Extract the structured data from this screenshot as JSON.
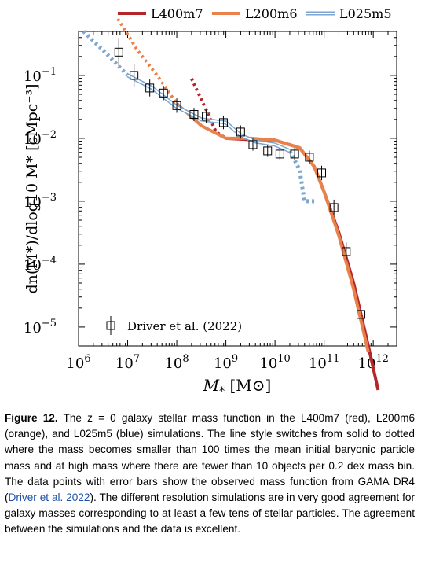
{
  "chart_data": {
    "type": "line",
    "xlabel_symbol": "M",
    "xlabel_sub": "*",
    "xlabel_unit": "[M⊙]",
    "ylabel": "dn(M*)/dlog10 M* [cMpc⁻³]",
    "xscale": "log",
    "yscale": "log",
    "xlim": [
      1000000.0,
      3000000000000.0
    ],
    "ylim": [
      5e-06,
      0.5
    ],
    "x_ticks": [
      6,
      7,
      8,
      9,
      10,
      11,
      12
    ],
    "y_ticks": [
      -5,
      -4,
      -3,
      -2,
      -1
    ],
    "legend_position": "top",
    "series": [
      {
        "name": "L400m7",
        "color": "#b5262a",
        "solid": [
          [
            9.0,
            -2.0
          ],
          [
            9.5,
            -2.02
          ],
          [
            10.0,
            -2.03
          ],
          [
            10.5,
            -2.15
          ],
          [
            10.8,
            -2.45
          ],
          [
            11.0,
            -2.85
          ],
          [
            11.3,
            -3.5
          ],
          [
            11.6,
            -4.3
          ],
          [
            11.9,
            -5.3
          ],
          [
            12.1,
            -6.0
          ]
        ],
        "dotted": [
          [
            8.3,
            -1.05
          ],
          [
            8.6,
            -1.55
          ],
          [
            8.8,
            -1.9
          ],
          [
            9.0,
            -2.0
          ]
        ]
      },
      {
        "name": "L200m6",
        "color": "#e8824a",
        "solid": [
          [
            8.0,
            -1.45
          ],
          [
            8.5,
            -1.8
          ],
          [
            9.0,
            -2.0
          ],
          [
            9.5,
            -2.0
          ],
          [
            10.0,
            -2.03
          ],
          [
            10.5,
            -2.15
          ],
          [
            10.8,
            -2.45
          ],
          [
            11.0,
            -2.85
          ],
          [
            11.3,
            -3.55
          ],
          [
            11.6,
            -4.4
          ],
          [
            11.9,
            -5.4
          ]
        ],
        "dotted": [
          [
            6.8,
            -0.1
          ],
          [
            7.2,
            -0.6
          ],
          [
            7.6,
            -1.0
          ],
          [
            8.0,
            -1.45
          ]
        ]
      },
      {
        "name": "L025m5",
        "color": "#7ea6cf",
        "solid": [
          [
            7.0,
            -1.0
          ],
          [
            7.5,
            -1.2
          ],
          [
            8.0,
            -1.5
          ],
          [
            8.5,
            -1.7
          ],
          [
            9.0,
            -1.75
          ],
          [
            9.3,
            -1.95
          ],
          [
            9.6,
            -2.05
          ],
          [
            10.0,
            -2.1
          ],
          [
            10.3,
            -2.2
          ]
        ],
        "dotted": [
          [
            6.1,
            -0.3
          ],
          [
            6.5,
            -0.6
          ],
          [
            7.0,
            -1.0
          ]
        ],
        "dotted_high": [
          [
            10.3,
            -2.2
          ],
          [
            10.5,
            -2.5
          ],
          [
            10.6,
            -3.0
          ],
          [
            10.8,
            -3.0
          ]
        ]
      }
    ],
    "observations": {
      "name": "Driver et al. (2022)",
      "points": [
        [
          6.82,
          -0.63,
          0.15
        ],
        [
          7.13,
          -1.0,
          0.1
        ],
        [
          7.45,
          -1.2,
          0.06
        ],
        [
          7.73,
          -1.28,
          0.04
        ],
        [
          8.0,
          -1.48,
          0.04
        ],
        [
          8.35,
          -1.62,
          0.03
        ],
        [
          8.6,
          -1.65,
          0.03
        ],
        [
          8.95,
          -1.75,
          0.03
        ],
        [
          9.3,
          -1.9,
          0.03
        ],
        [
          9.55,
          -2.1,
          0.02
        ],
        [
          9.85,
          -2.2,
          0.02
        ],
        [
          10.1,
          -2.25,
          0.02
        ],
        [
          10.4,
          -2.25,
          0.02
        ],
        [
          10.7,
          -2.3,
          0.03
        ],
        [
          10.95,
          -2.55,
          0.04
        ],
        [
          11.2,
          -3.1,
          0.05
        ],
        [
          11.45,
          -3.8,
          0.07
        ],
        [
          11.75,
          -4.8,
          0.15
        ]
      ]
    }
  },
  "caption": {
    "label": "Figure 12.",
    "text_before": " The z = 0 galaxy stellar mass function in the L400m7 (red), L200m6 (orange), and L025m5 (blue) simulations. The line style switches from solid to dotted where the mass becomes smaller than 100 times the mean initial baryonic particle mass and at high mass where there are fewer than 10 objects per 0.2 dex mass bin. The data points with error bars show the observed mass function from GAMA DR4 (",
    "citation": "Driver et al. 2022",
    "text_after": "). The different resolution simulations are in very good agreement for galaxy masses corresponding to at least a few tens of stellar particles. The agreement between the simulations and the data is excellent."
  }
}
